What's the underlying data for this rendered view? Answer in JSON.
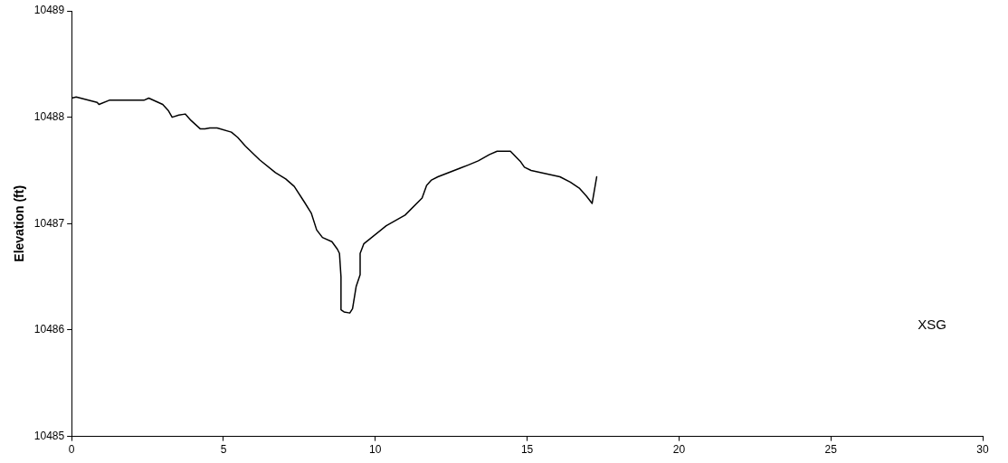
{
  "chart_data": {
    "type": "line",
    "ylabel": "Elevation (ft)",
    "annotations": [
      "XSG"
    ],
    "x": [
      0,
      0.15,
      0.84,
      0.9,
      1.24,
      2.38,
      2.54,
      3.0,
      3.19,
      3.31,
      3.53,
      3.74,
      3.93,
      4.24,
      4.39,
      4.55,
      4.79,
      5.26,
      5.47,
      5.72,
      6.19,
      6.71,
      7.05,
      7.33,
      7.67,
      7.89,
      8.07,
      8.26,
      8.57,
      8.75,
      8.82,
      8.87,
      8.87,
      8.97,
      9.16,
      9.25,
      9.37,
      9.5,
      9.5,
      9.62,
      10.36,
      10.98,
      11.54,
      11.69,
      11.85,
      12.06,
      13.05,
      13.39,
      13.76,
      14.01,
      14.45,
      14.79,
      14.91,
      15.13,
      16.08,
      16.42,
      16.73,
      16.95,
      17.14,
      17.2,
      17.29
    ],
    "series": [
      {
        "color": "#000000",
        "values": [
          10488.18,
          10488.19,
          10488.14,
          10488.12,
          10488.16,
          10488.16,
          10488.18,
          10488.12,
          10488.06,
          10488.0,
          10488.02,
          10488.03,
          10487.97,
          10487.89,
          10487.89,
          10487.9,
          10487.9,
          10487.86,
          10487.81,
          10487.73,
          10487.6,
          10487.48,
          10487.42,
          10487.35,
          10487.2,
          10487.1,
          10486.94,
          10486.87,
          10486.83,
          10486.76,
          10486.72,
          10486.5,
          10486.19,
          10486.17,
          10486.16,
          10486.2,
          10486.41,
          10486.52,
          10486.72,
          10486.81,
          10486.98,
          10487.08,
          10487.24,
          10487.36,
          10487.41,
          10487.44,
          10487.55,
          10487.59,
          10487.65,
          10487.68,
          10487.68,
          10487.58,
          10487.53,
          10487.5,
          10487.44,
          10487.39,
          10487.33,
          10487.26,
          10487.19,
          10487.29,
          10487.44
        ]
      }
    ],
    "xlim": [
      0,
      30
    ],
    "xticks": [
      0,
      5,
      10,
      15,
      20,
      25,
      30
    ],
    "ylim": [
      10485,
      10489
    ],
    "yticks": [
      10485,
      10486,
      10487,
      10488,
      10489
    ],
    "grid": false,
    "legend": false,
    "marker": "none",
    "line_style": "solid"
  }
}
